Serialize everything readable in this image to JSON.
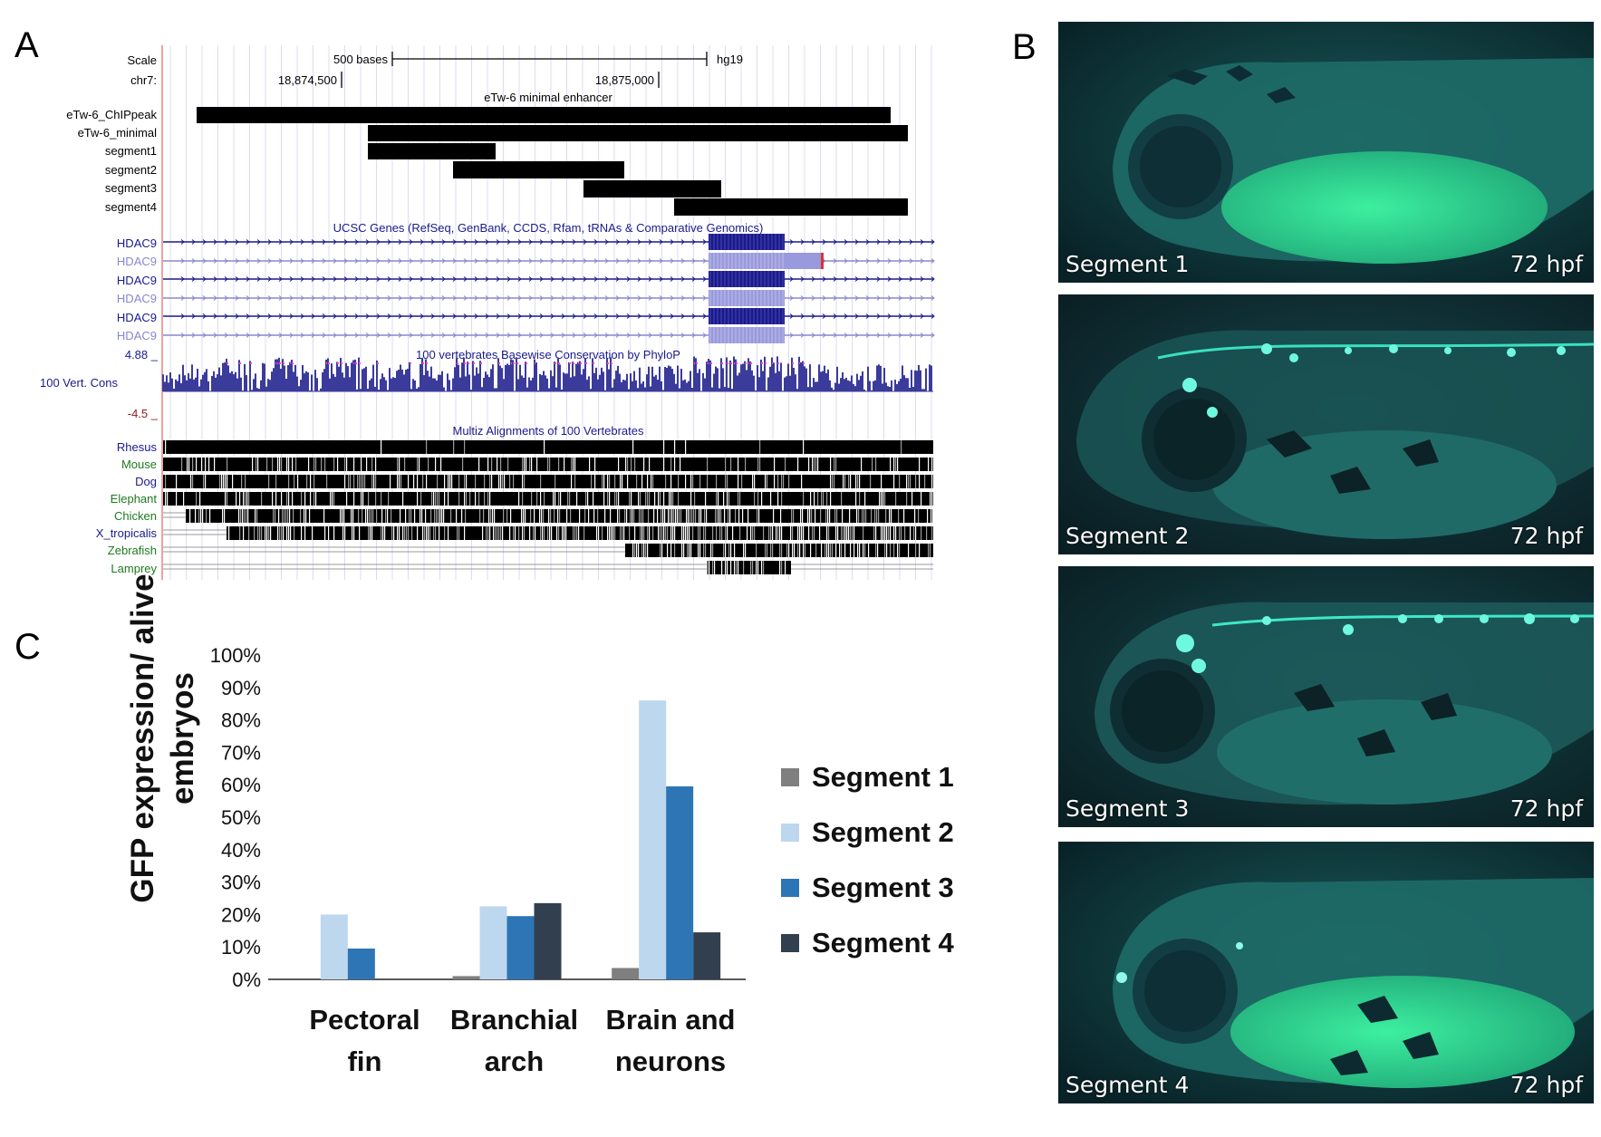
{
  "panels": {
    "a": "A",
    "b": "B",
    "c": "C"
  },
  "browser": {
    "scale_label": "Scale",
    "scale_text": "500 bases",
    "assembly": "hg19",
    "chr_label": "chr7:",
    "coord1": "18,874,500",
    "coord2": "18,875,000",
    "enhancer_title": "eTw-6 minimal enhancer",
    "tracks": [
      {
        "label": "eTw-6_ChIPpeak"
      },
      {
        "label": "eTw-6_minimal"
      },
      {
        "label": "segment1"
      },
      {
        "label": "segment2"
      },
      {
        "label": "segment3"
      },
      {
        "label": "segment4"
      }
    ],
    "genes_title": "UCSC Genes (RefSeq, GenBank, CCDS, Rfam, tRNAs & Comparative Genomics)",
    "genes": [
      "HDAC9",
      "HDAC9",
      "HDAC9",
      "HDAC9",
      "HDAC9",
      "HDAC9"
    ],
    "cons_max": "4.88 _",
    "cons_title": "100 vertebrates Basewise Conservation by PhyloP",
    "cons_label": "100 Vert. Cons",
    "cons_min": "-4.5 _",
    "multiz_title": "Multiz Alignments of 100 Vertebrates",
    "species": [
      "Rhesus",
      "Mouse",
      "Dog",
      "Elephant",
      "Chicken",
      "X_tropicalis",
      "Zebrafish",
      "Lamprey"
    ]
  },
  "fish": [
    {
      "name": "Segment 1",
      "stage": "72 hpf"
    },
    {
      "name": "Segment 2",
      "stage": "72 hpf"
    },
    {
      "name": "Segment 3",
      "stage": "72 hpf"
    },
    {
      "name": "Segment 4",
      "stage": "72 hpf"
    }
  ],
  "colors": {
    "segment1": "#7f7f7f",
    "segment2": "#bdd7ee",
    "segment3": "#2e75b6",
    "segment4": "#323f4f",
    "ucsc_blue": "#1a1a8c",
    "gfp": "#2fe0a8"
  },
  "chart_data": {
    "type": "bar",
    "ylabel": "GFP expression/ alive embryos",
    "ylabel_lines": [
      "GFP expression/ alive",
      "embryos"
    ],
    "categories": [
      "Pectoral fin",
      "Branchial arch",
      "Brain and neurons"
    ],
    "category_lines": [
      [
        "Pectoral",
        "fin"
      ],
      [
        "Branchial",
        "arch"
      ],
      [
        "Brain and",
        "neurons"
      ]
    ],
    "ylim": [
      0,
      100
    ],
    "yticks": [
      "0%",
      "10%",
      "20%",
      "30%",
      "40%",
      "50%",
      "60%",
      "70%",
      "80%",
      "90%",
      "100%"
    ],
    "series": [
      {
        "name": "Segment 1",
        "values": [
          0,
          1,
          3.5
        ]
      },
      {
        "name": "Segment 2",
        "values": [
          20,
          22.5,
          86
        ]
      },
      {
        "name": "Segment 3",
        "values": [
          9.5,
          19.5,
          59.5
        ]
      },
      {
        "name": "Segment 4",
        "values": [
          0,
          23.5,
          14.5
        ]
      }
    ],
    "legend": "right",
    "grid": false
  }
}
